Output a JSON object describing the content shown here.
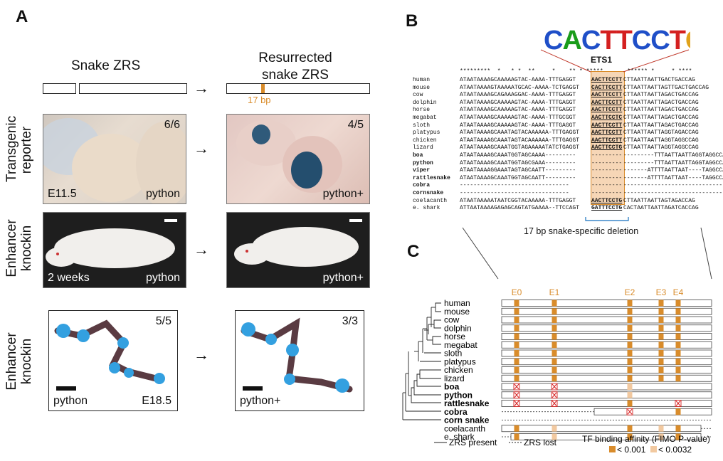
{
  "panelA": {
    "letter": "A",
    "snake_zrs": "Snake ZRS",
    "resurrected": [
      "Resurrected",
      "snake ZRS"
    ],
    "bp_label": "17 bp",
    "row_labels": [
      [
        "Transgenic",
        "reporter"
      ],
      [
        "Enhancer",
        "knockin"
      ],
      [
        "Enhancer",
        "knockin"
      ]
    ],
    "photos": [
      {
        "stage": "E11.5",
        "species": "python",
        "count": "6/6"
      },
      {
        "species": "python+",
        "count": "4/5"
      },
      {
        "stage": "2 weeks",
        "species": "python"
      },
      {
        "species": "python+"
      },
      {
        "count": "5/5",
        "species": "python",
        "stage": "E18.5"
      },
      {
        "count": "3/3",
        "species": "python+"
      }
    ]
  },
  "panelB": {
    "letter": "B",
    "motif": "CACTTCCTGT",
    "motif_name": "ETS1",
    "stars": "*********  *   * *  **     *    ** * *****       ****** *     * ****",
    "species": [
      "human",
      "mouse",
      "cow",
      "dolphin",
      "horse",
      "megabat",
      "sloth",
      "platypus",
      "chicken",
      "lizard",
      "boa",
      "python",
      "viper",
      "rattlesnake",
      "cobra",
      "cornsnake",
      "coelacanth",
      "e. shark"
    ],
    "bold_species": [
      "boa",
      "python",
      "viper",
      "rattlesnake",
      "cobra",
      "cornsnake"
    ],
    "seq_left": [
      "ATAATAAAAGCAAAAAGTAC-AAAA-TTTGAGGT",
      "ATAATAAAAGTAAAAATGCAC-AAAA-TCTGAGGT",
      "ATAATAAAAGCAGAAAGGAC-AAAA-TTTGAGGT",
      "ATAATAAAAGCAAAAAGTAC-AAAA-TTTGAGGT",
      "ATAATAAAAGCAAAAAGTAC-AAAA-TTTGAGGT",
      "ATAATAAAAGCAAAAAGTAC-AAAA-TTTGCGGT",
      "ATAATAAAAGCAAAAAGTAC-AAAA-TTTGAGGT",
      "ATAATAAAAGCAAATAGTACAAAAAA-TTTGAGGT",
      "ATAATAAAAGCAAATAGTACAAAAAA-TTTGAGGT",
      "ATAATAAAAGCAAATGGTAGAAAAATATCTGAGGT",
      "ATAATAAAAGCAAATGGTAGCAAAA---------",
      "ATAATAAAAGCAAATGGTAGCGAAA---------",
      "ATAATAAAAGGAAATAGTAGCAATT---------",
      "ATAATAAAAGCAAATGGTAGCAATT---------",
      "--------------------------------",
      "--------------------------------",
      "ATAATAAAAATAATCGGTACAAAAA-TTTGAGGT",
      "ATTAATAAAAGAGAGCAGTATGAAAA--TTCCAGT"
    ],
    "seq_mid": [
      "AACTTCCTT",
      "CACTTCCTT",
      "AACTTCCTT",
      "AACTTCCTT",
      "AACTTCCTT",
      "AACTTCCTC",
      "AACTTCCTT",
      "AACTTCCTT",
      "AACTTCCTT",
      "AACTTCCTG",
      "---------",
      "---------",
      "---------",
      "---------",
      "---------",
      "---------",
      "AACTTCCTG",
      "GATTTCCTG"
    ],
    "seq_right": [
      "CTTAATTAATTGACTGACCAG",
      "CTTAATTAATTAGTTGACTGACCAG",
      "CTTAATTAATTAGACTGACCAG",
      "CTTAATTAATTAGACTGACCAG",
      "CTTAATTAATTAGACTGACCAG",
      "CTTAATTAATTAGACTGACCAG",
      "CTTAATTAATTAGACTGACCAG",
      "CTTAATTAATTAGGTAGACCAG",
      "CTTAATTAATTAGGTAGGCCAG",
      "CTTAATTAATTAGGTAGGCCAG",
      "---------TTTAATTAATTAGGTAGGCCAG",
      "---------TTTAATTAATTAGGTAGGCCAG",
      "-------ATTTTAATTAAT----TAGGCCAG",
      "-------ATTTTAATTAAT----TAGGCCAG",
      "-------------------------------",
      "-------------------------------",
      "CTTAATTAATTAGTAGACCAG",
      "CACTAATTAATTAGATCACCAG"
    ],
    "deletion_label": "17 bp snake-specific deletion"
  },
  "panelC": {
    "letter": "C",
    "sites": [
      "E0",
      "E1",
      "E2",
      "E3",
      "E4"
    ],
    "species": [
      "human",
      "mouse",
      "cow",
      "dolphin",
      "horse",
      "megabat",
      "sloth",
      "platypus",
      "chicken",
      "lizard",
      "boa",
      "python",
      "rattlesnake",
      "cobra",
      "corn snake",
      "coelacanth",
      "e. shark"
    ],
    "bold_species": [
      "boa",
      "python",
      "rattlesnake",
      "cobra",
      "corn snake"
    ],
    "legend_present": "ZRS present",
    "legend_lost": "ZRS lost",
    "affinity_title": "TF binding affinity (FIMO P-value)",
    "affinity_strong": "< 0.001",
    "affinity_weak": "< 0.0032",
    "colors": {
      "strong": "#d98c2b",
      "weak": "#f2c9a0",
      "lost": "#d62020"
    }
  }
}
